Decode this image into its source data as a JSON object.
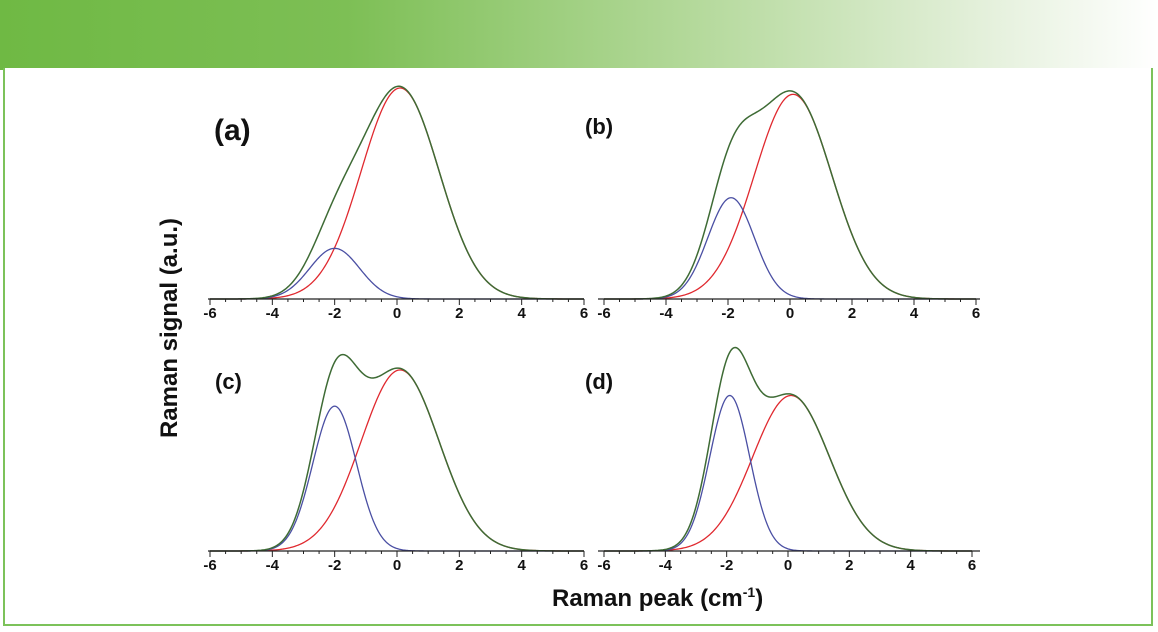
{
  "axes": {
    "ylabel": "Raman signal (a.u.)",
    "xlabel_prefix": "Raman peak (cm",
    "xlabel_superscript": "-1",
    "xlabel_suffix": ")"
  },
  "colors": {
    "header_gradient_start": "#6fb944",
    "frame_border": "#7cc25a",
    "sum_curve": "#3e6b35",
    "peak_main": "#e0292f",
    "peak_shoulder": "#4a4fa3",
    "axis": "#222222"
  },
  "chart_data": [
    {
      "panel_label": "(a)",
      "type": "line",
      "xlim": [
        -6,
        6
      ],
      "xticks": [
        "-6",
        "-4",
        "-2",
        "0",
        "2",
        "4",
        "6"
      ],
      "grid": false,
      "peaks": [
        {
          "color": "peak_main",
          "center": 0.1,
          "amplitude": 1.0,
          "sigma": 1.25
        },
        {
          "color": "peak_shoulder",
          "center": -2.0,
          "amplitude": 0.24,
          "sigma": 0.8
        }
      ],
      "sum": true
    },
    {
      "panel_label": "(b)",
      "type": "line",
      "xlim": [
        -6,
        6
      ],
      "xticks": [
        "-6",
        "-4",
        "-2",
        "0",
        "2",
        "4",
        "6"
      ],
      "grid": false,
      "peaks": [
        {
          "color": "peak_main",
          "center": 0.1,
          "amplitude": 0.97,
          "sigma": 1.25
        },
        {
          "color": "peak_shoulder",
          "center": -1.9,
          "amplitude": 0.48,
          "sigma": 0.75
        }
      ],
      "sum": true
    },
    {
      "panel_label": "(c)",
      "type": "line",
      "xlim": [
        -6,
        6
      ],
      "xticks": [
        "-6",
        "-4",
        "-2",
        "0",
        "2",
        "4",
        "6"
      ],
      "grid": false,
      "peaks": [
        {
          "color": "peak_main",
          "center": 0.1,
          "amplitude": 0.85,
          "sigma": 1.25
        },
        {
          "color": "peak_shoulder",
          "center": -2.0,
          "amplitude": 0.68,
          "sigma": 0.7
        }
      ],
      "sum": true
    },
    {
      "panel_label": "(d)",
      "type": "line",
      "xlim": [
        -6,
        6
      ],
      "xticks": [
        "-6",
        "-4",
        "-2",
        "0",
        "2",
        "4",
        "6"
      ],
      "grid": false,
      "peaks": [
        {
          "color": "peak_main",
          "center": 0.1,
          "amplitude": 0.73,
          "sigma": 1.25
        },
        {
          "color": "peak_shoulder",
          "center": -1.9,
          "amplitude": 0.73,
          "sigma": 0.65
        }
      ],
      "sum": true
    }
  ]
}
